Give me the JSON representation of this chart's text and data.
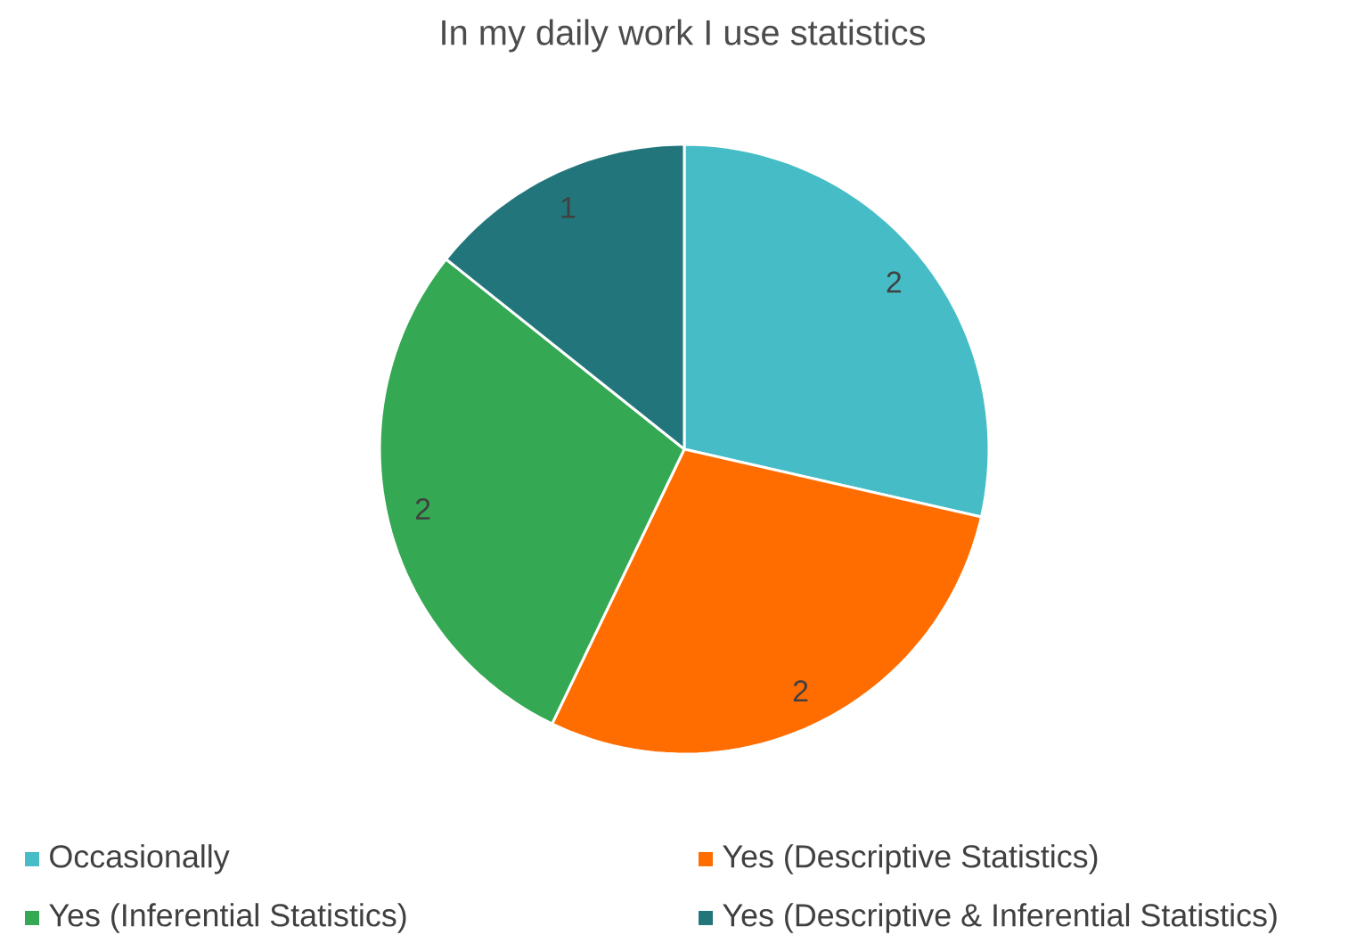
{
  "chart_data": {
    "type": "pie",
    "title": "In my daily work I use statistics",
    "categories": [
      "Occasionally",
      "Yes (Descriptive Statistics)",
      "Yes (Inferential Statistics)",
      "Yes (Descriptive & Inferential Statistics)"
    ],
    "values": [
      2,
      2,
      2,
      1
    ],
    "colors": [
      "#46bdc6",
      "#ff6d01",
      "#34a853",
      "#22767b"
    ],
    "data_labels": true,
    "legend": "bottom"
  }
}
